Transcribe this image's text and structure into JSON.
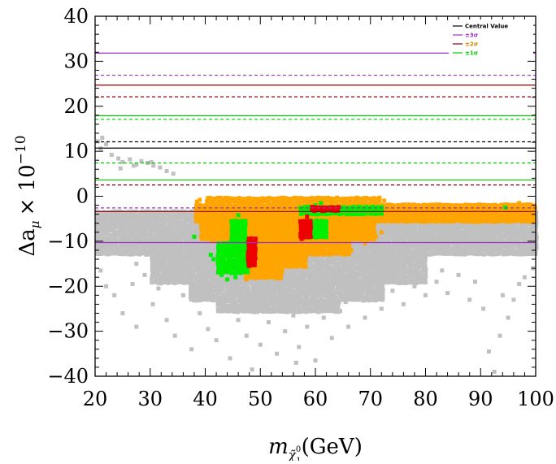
{
  "chart_data": {
    "type": "scatter",
    "xlabel": "m",
    "xlabel_sub": "χ̃",
    "xlabel_sub_sup": "0",
    "xlabel_sub_sub": "1",
    "xlabel_unit": "(GeV)",
    "ylabel": "Δa",
    "ylabel_sub": "μ",
    "ylabel_times": "× 10",
    "ylabel_exp": "−10",
    "xlim": [
      20,
      100
    ],
    "ylim": [
      -40,
      40
    ],
    "x_ticks": [
      "20",
      "30",
      "40",
      "50",
      "60",
      "70",
      "80",
      "90",
      "100"
    ],
    "y_ticks": [
      "40",
      "30",
      "20",
      "10",
      "0",
      "−10",
      "−20",
      "−30",
      "−40"
    ],
    "grid": false,
    "legend": {
      "placement": "top-right",
      "entries": [
        {
          "label": "Central Value",
          "color": "#000000",
          "text_color": "#000000"
        },
        {
          "label": "±3σ",
          "color": "#9b30c8",
          "text_color": "#9b30c8"
        },
        {
          "label": "±2σ",
          "color": "#8b0000",
          "text_color": "#cc8800"
        },
        {
          "label": "±1σ",
          "color": "#00cc00",
          "text_color": "#00cc00"
        }
      ]
    },
    "reference_lines": [
      {
        "name": "central-solid",
        "y": 10.7,
        "color": "#000000",
        "style": "solid"
      },
      {
        "name": "central-dashed",
        "y": 12.1,
        "color": "#000000",
        "style": "dashed"
      },
      {
        "name": "plus1sigma-solid",
        "y": 17.9,
        "color": "#00cc00",
        "style": "solid"
      },
      {
        "name": "plus1sigma-dashed",
        "y": 17.1,
        "color": "#00cc00",
        "style": "dashed"
      },
      {
        "name": "minus1sigma-solid",
        "y": 3.6,
        "color": "#00cc00",
        "style": "solid"
      },
      {
        "name": "minus1sigma-dashed",
        "y": 7.4,
        "color": "#00cc00",
        "style": "dashed"
      },
      {
        "name": "plus2sigma-solid",
        "y": 24.7,
        "color": "#8b0000",
        "style": "solid"
      },
      {
        "name": "plus2sigma-dashed",
        "y": 22.1,
        "color": "#8b0000",
        "style": "dashed"
      },
      {
        "name": "minus2sigma-solid",
        "y": -3.4,
        "color": "#8b0000",
        "style": "solid"
      },
      {
        "name": "minus2sigma-dashed",
        "y": 2.5,
        "color": "#8b0000",
        "style": "dashed"
      },
      {
        "name": "plus3sigma-solid",
        "y": 31.8,
        "color": "#9b30c8",
        "style": "solid"
      },
      {
        "name": "plus3sigma-dashed",
        "y": 26.9,
        "color": "#9b30c8",
        "style": "dashed"
      },
      {
        "name": "minus3sigma-solid",
        "y": -10.3,
        "color": "#9b30c8",
        "style": "solid"
      },
      {
        "name": "minus3sigma-dashed",
        "y": -2.6,
        "color": "#9b30c8",
        "style": "dashed"
      }
    ],
    "series": [
      {
        "color": "#c0c0c0",
        "regions": [
          {
            "x": [
              20,
              100
            ],
            "y": [
              -13,
              -3
            ]
          },
          {
            "x": [
              30,
              80
            ],
            "y": [
              -19,
              -13
            ]
          },
          {
            "x": [
              37,
              72
            ],
            "y": [
              -23,
              -19
            ]
          },
          {
            "x": [
              42,
              64
            ],
            "y": [
              -26,
              -23
            ]
          }
        ],
        "points": [
          [
            20.5,
            12.2
          ],
          [
            21.3,
            13.0
          ],
          [
            22.0,
            11.6
          ],
          [
            21.0,
            10.6
          ],
          [
            23.0,
            9.2
          ],
          [
            24.2,
            8.4
          ],
          [
            25.0,
            7.6
          ],
          [
            26.3,
            8.2
          ],
          [
            27.5,
            7.0
          ],
          [
            28.4,
            7.8
          ],
          [
            29.5,
            7.4
          ],
          [
            30.6,
            6.8
          ],
          [
            31.8,
            6.4
          ],
          [
            33.0,
            5.6
          ],
          [
            34.2,
            5.0
          ],
          [
            24.6,
            6.2
          ],
          [
            27.0,
            6.8
          ],
          [
            30.2,
            7.6
          ],
          [
            21.0,
            -16.5
          ],
          [
            22.0,
            -20.0
          ],
          [
            23.5,
            -22.0
          ],
          [
            25.0,
            -26.0
          ],
          [
            26.8,
            -19.5
          ],
          [
            27.5,
            -29.0
          ],
          [
            30.5,
            -24.0
          ],
          [
            33.0,
            -27.5
          ],
          [
            34.5,
            -31.0
          ],
          [
            36.0,
            -22.0
          ],
          [
            37.5,
            -34.0
          ],
          [
            39.0,
            -26.0
          ],
          [
            40.5,
            -29.5
          ],
          [
            42.0,
            -32.0
          ],
          [
            43.5,
            -25.5
          ],
          [
            44.5,
            -36.0
          ],
          [
            46.0,
            -27.5
          ],
          [
            47.5,
            -31.0
          ],
          [
            48.5,
            -38.5
          ],
          [
            50.0,
            -33.0
          ],
          [
            51.5,
            -28.0
          ],
          [
            53.0,
            -35.0
          ],
          [
            54.5,
            -30.0
          ],
          [
            56.0,
            -26.5
          ],
          [
            57.0,
            -33.5
          ],
          [
            58.5,
            -29.0
          ],
          [
            60.0,
            -36.5
          ],
          [
            61.5,
            -27.0
          ],
          [
            63.0,
            -31.5
          ],
          [
            64.5,
            -25.5
          ],
          [
            66.0,
            -29.0
          ],
          [
            67.5,
            -23.0
          ],
          [
            69.0,
            -27.0
          ],
          [
            70.5,
            -22.0
          ],
          [
            72.0,
            -25.0
          ],
          [
            74.0,
            -21.0
          ],
          [
            76.0,
            -24.0
          ],
          [
            78.0,
            -20.0
          ],
          [
            80.0,
            -22.0
          ],
          [
            82.0,
            -19.0
          ],
          [
            84.0,
            -21.5
          ],
          [
            86.0,
            -17.5
          ],
          [
            88.0,
            -23.0
          ],
          [
            89.0,
            -19.0
          ],
          [
            90.5,
            -25.0
          ],
          [
            91.5,
            -34.5
          ],
          [
            92.5,
            -39.0
          ],
          [
            93.5,
            -31.0
          ],
          [
            95.0,
            -27.0
          ],
          [
            96.0,
            -23.0
          ],
          [
            97.0,
            -19.5
          ],
          [
            98.0,
            -18.0
          ],
          [
            99.5,
            -16.0
          ],
          [
            31.5,
            -20.5
          ],
          [
            35.5,
            -18.5
          ],
          [
            38.5,
            -21.5
          ],
          [
            45.5,
            -23.5
          ],
          [
            52.5,
            -24.5
          ],
          [
            59.5,
            -24.0
          ],
          [
            65.5,
            -23.5
          ],
          [
            75.0,
            -18.0
          ],
          [
            83.0,
            -16.5
          ],
          [
            94.0,
            -22.0
          ],
          [
            29.0,
            -17.5
          ],
          [
            27.5,
            -15.0
          ],
          [
            56.5,
            -37.0
          ],
          [
            48.0,
            -22.5
          ],
          [
            44.0,
            -21.0
          ]
        ]
      },
      {
        "color": "#ffa500",
        "regions": [
          {
            "x": [
              38,
              100
            ],
            "y": [
              -5.5,
              -1.5
            ]
          },
          {
            "x": [
              40,
              72
            ],
            "y": [
              -1.5,
              0
            ]
          },
          {
            "x": [
              39,
              71
            ],
            "y": [
              -9.5,
              -5.5
            ]
          },
          {
            "x": [
              44,
              66
            ],
            "y": [
              -13,
              -9.5
            ]
          },
          {
            "x": [
              46,
              58
            ],
            "y": [
              -15.5,
              -13
            ]
          },
          {
            "x": [
              47,
              54
            ],
            "y": [
              -18,
              -15.5
            ]
          }
        ],
        "points": [
          [
            72.5,
            -1.0
          ],
          [
            73.5,
            -2.0
          ],
          [
            72.0,
            -8.0
          ],
          [
            71.0,
            -9.0
          ],
          [
            69.0,
            -10.5
          ],
          [
            66.5,
            -12.0
          ],
          [
            43.0,
            -11.0
          ],
          [
            41.5,
            -10.0
          ],
          [
            39.0,
            -0.8
          ],
          [
            38.5,
            -1.2
          ],
          [
            47.5,
            -18.5
          ],
          [
            50.5,
            -17.5
          ],
          [
            53.5,
            -16.5
          ],
          [
            56.5,
            -14.5
          ],
          [
            58.5,
            -13.0
          ],
          [
            61.0,
            -12.5
          ],
          [
            63.0,
            -11.5
          ],
          [
            99.0,
            -2.0
          ],
          [
            97.0,
            -1.5
          ]
        ]
      },
      {
        "color": "#00ee00",
        "regions": [
          {
            "x": [
              42,
              48
            ],
            "y": [
              -17,
              -10
            ]
          },
          {
            "x": [
              44.5,
              47.5
            ],
            "y": [
              -10,
              -5
            ]
          },
          {
            "x": [
              58,
              62
            ],
            "y": [
              -9,
              -5
            ]
          },
          {
            "x": [
              57,
              72
            ],
            "y": [
              -3.8,
              -2
            ]
          }
        ],
        "points": [
          [
            46.0,
            -4.2
          ],
          [
            38.0,
            -9.0
          ],
          [
            44.0,
            -18.5
          ],
          [
            45.5,
            -18.0
          ],
          [
            43.0,
            -17.5
          ],
          [
            41.5,
            -14.0
          ],
          [
            41.0,
            -13.0
          ],
          [
            61.0,
            -8.5
          ],
          [
            62.0,
            -8.0
          ],
          [
            94.5,
            -2.5
          ],
          [
            61.0,
            -1.5
          ],
          [
            60.0,
            -2.0
          ]
        ]
      },
      {
        "color": "#ee0000",
        "regions": [
          {
            "x": [
              47.5,
              49
            ],
            "y": [
              -15,
              -9
            ]
          },
          {
            "x": [
              57,
              59
            ],
            "y": [
              -9,
              -5
            ]
          },
          {
            "x": [
              59,
              64
            ],
            "y": [
              -3.5,
              -2
            ]
          }
        ],
        "points": [
          [
            58.5,
            -4.5
          ],
          [
            57.5,
            -9.5
          ],
          [
            48.0,
            -15.5
          ],
          [
            61.5,
            -2.5
          ]
        ]
      }
    ]
  }
}
